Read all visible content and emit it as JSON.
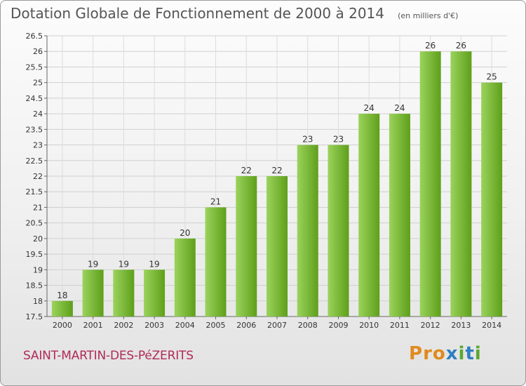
{
  "header": {
    "title": "Dotation Globale de Fonctionnement de 2000 à 2014",
    "subtitle": "(en milliers d'€)"
  },
  "footer": {
    "commune": "SAINT-MARTIN-DES-PéZERITS",
    "logo_text": "Proxiti"
  },
  "colors": {
    "bar_light": "#9bd35c",
    "bar_dark": "#5e9f1a",
    "commune_text": "#b02a57",
    "logo_letters": [
      "#e08a1e",
      "#e08a1e",
      "#e08a1e",
      "#2e7fc2",
      "#5aa832",
      "#2e7fc2",
      "#5aa832"
    ]
  },
  "chart_data": {
    "type": "bar",
    "categories": [
      "2000",
      "2001",
      "2002",
      "2003",
      "2004",
      "2005",
      "2006",
      "2007",
      "2008",
      "2009",
      "2010",
      "2011",
      "2012",
      "2013",
      "2014"
    ],
    "values": [
      18,
      19,
      19,
      19,
      20,
      21,
      22,
      22,
      23,
      23,
      24,
      24,
      26,
      26,
      25
    ],
    "data_labels": [
      "18",
      "19",
      "19",
      "19",
      "20",
      "21",
      "22",
      "22",
      "23",
      "23",
      "24",
      "24",
      "26",
      "26",
      "25"
    ],
    "yticks": [
      "17.5",
      "18",
      "18.5",
      "19",
      "19.5",
      "20",
      "20.5",
      "21",
      "21.5",
      "22",
      "22.5",
      "23",
      "23.5",
      "24",
      "24.5",
      "25",
      "25.5",
      "26",
      "26.5"
    ],
    "ylim": [
      17.5,
      26.5
    ],
    "grid": true,
    "xlabel": "",
    "ylabel": ""
  }
}
